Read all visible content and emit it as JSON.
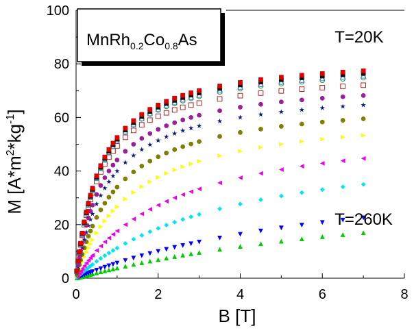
{
  "chart_data": {
    "type": "scatter",
    "title": "",
    "xlabel": "B [T]",
    "ylabel_parts": {
      "base": "M [A*m",
      "sup1": "2",
      "mid": "*kg",
      "sup2": "-1",
      "end": "]"
    },
    "xlim": [
      0,
      8
    ],
    "ylim": [
      0,
      100
    ],
    "x_ticks": [
      0,
      2,
      4,
      6,
      8
    ],
    "y_ticks": [
      0,
      20,
      40,
      60,
      80,
      100
    ],
    "grid": false,
    "inset_label": {
      "prefix": "MnRh",
      "sub1": "0.2",
      "mid": "Co",
      "sub2": "0.8",
      "suffix": "As"
    },
    "annotations": [
      {
        "text": "T=20K",
        "x": 6.3,
        "y": 88
      },
      {
        "text": "T=260K",
        "x": 6.3,
        "y": 20
      }
    ],
    "series": [
      {
        "label": "T=20K",
        "marker": "square-filled",
        "color": "#e00000",
        "Ms": 84
      },
      {
        "label": "",
        "marker": "square-filled",
        "color": "#111111",
        "Ms": 83
      },
      {
        "label": "",
        "marker": "triangle-up-open",
        "color": "#3a7fd0",
        "Ms": 82
      },
      {
        "label": "",
        "marker": "circle-open",
        "color": "#2ca02c",
        "Ms": 81
      },
      {
        "label": "",
        "marker": "square-open",
        "color": "#b22222",
        "Ms": 78
      },
      {
        "label": "",
        "marker": "circle-filled",
        "color": "#9b1f9b",
        "Ms": 75
      },
      {
        "label": "",
        "marker": "star",
        "color": "#0d1b7a",
        "Ms": 72
      },
      {
        "label": "",
        "marker": "circle-filled",
        "color": "#808000",
        "Ms": 68
      },
      {
        "label": "",
        "marker": "triangle-right",
        "color": "#ffff00",
        "Ms": 64
      },
      {
        "label": "",
        "marker": "triangle-left",
        "color": "#ee00ee",
        "Ms": 60
      },
      {
        "label": "",
        "marker": "diamond",
        "color": "#00e5ee",
        "Ms": 54
      },
      {
        "label": "",
        "marker": "triangle-down",
        "color": "#0000ff",
        "Ms": 45
      },
      {
        "label": "T=260K",
        "marker": "triangle-up",
        "color": "#00cc00",
        "Ms": 40
      }
    ],
    "series_k": [
      0.6,
      0.6,
      0.6,
      0.58,
      0.58,
      0.7,
      0.8,
      1.0,
      1.4,
      2.4,
      3.8,
      7.0,
      9.5
    ],
    "x": [
      0.02,
      0.05,
      0.08,
      0.11,
      0.15,
      0.2,
      0.25,
      0.3,
      0.35,
      0.4,
      0.5,
      0.6,
      0.7,
      0.8,
      0.9,
      1.0,
      1.2,
      1.4,
      1.6,
      1.8,
      2.0,
      2.2,
      2.4,
      2.6,
      2.8,
      3.0,
      3.5,
      4.0,
      4.5,
      5.0,
      5.5,
      6.0,
      6.5,
      7.0
    ]
  }
}
